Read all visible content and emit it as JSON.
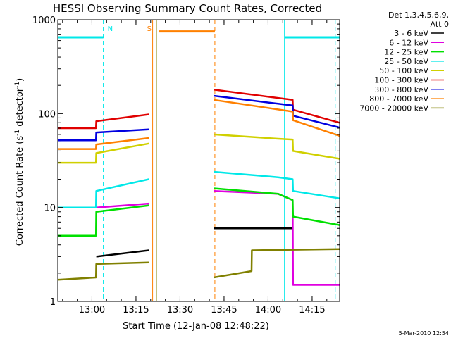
{
  "chart_data": {
    "type": "line",
    "title": "HESSI Observing Summary Count Rates, Corrected",
    "xlabel": "Start Time (12-Jan-08 12:48:22)",
    "ylabel_pre": "Corrected Count Rate (s",
    "ylabel_sup1": "-1",
    "ylabel_mid": " detector",
    "ylabel_sup2": "-1",
    "ylabel_post": ")",
    "footer": "5-Mar-2010 12:54",
    "y_scale": "log",
    "ylim": [
      1,
      1000
    ],
    "xlim_minutes": [
      0,
      96
    ],
    "x_ticks": [
      {
        "label": "13:00",
        "value": 11.63
      },
      {
        "label": "13:15",
        "value": 26.63
      },
      {
        "label": "13:30",
        "value": 41.63
      },
      {
        "label": "13:45",
        "value": 56.63
      },
      {
        "label": "14:00",
        "value": 71.63
      },
      {
        "label": "14:15",
        "value": 86.63
      }
    ],
    "y_ticks": [
      {
        "label": "1",
        "value": 1
      },
      {
        "label": "10",
        "value": 10
      },
      {
        "label": "100",
        "value": 100
      },
      {
        "label": "1000",
        "value": 1000
      }
    ],
    "legend_header": [
      "Det 1,3,4,5,6,9,",
      "Att 0"
    ],
    "legend_position": "right",
    "series": [
      {
        "name": "3 - 6 keV",
        "color": "#000000",
        "x": [
          0,
          13,
          13.1,
          31,
          53,
          53.1,
          80,
          80.1,
          96
        ],
        "y": [
          null,
          null,
          3.0,
          3.5,
          null,
          6.0,
          6.0,
          null,
          null
        ]
      },
      {
        "name": "6 - 12 keV",
        "color": "#e000e0",
        "x": [
          0,
          13,
          13.1,
          31,
          53,
          53.1,
          75,
          80,
          80.1,
          96
        ],
        "y": [
          null,
          null,
          10.0,
          11.0,
          null,
          15.0,
          14.0,
          12.0,
          1.5,
          1.5
        ]
      },
      {
        "name": "12 - 25 keV",
        "color": "#00e000",
        "x": [
          0,
          13,
          13.1,
          31,
          53,
          53.1,
          75,
          80,
          80.1,
          96
        ],
        "y": [
          5.0,
          5.0,
          9.0,
          10.5,
          null,
          16.0,
          14.0,
          12.0,
          8.0,
          6.5
        ]
      },
      {
        "name": "25 - 50 keV",
        "color": "#00e8e8",
        "x": [
          0,
          13,
          13.1,
          31,
          53,
          53.1,
          75,
          80,
          80.1,
          96
        ],
        "y": [
          10.0,
          10.0,
          15.0,
          20.0,
          null,
          24.0,
          21.0,
          20.0,
          15.0,
          12.5
        ]
      },
      {
        "name": "50 - 100 keV",
        "color": "#d0d000",
        "x": [
          0,
          13,
          13.1,
          31,
          53,
          53.1,
          75,
          80,
          80.1,
          96
        ],
        "y": [
          30.0,
          30.0,
          38.0,
          48.0,
          null,
          60.0,
          54.0,
          53.0,
          40.0,
          33.0
        ]
      },
      {
        "name": "100 - 300 keV",
        "color": "#e00000",
        "x": [
          0,
          13,
          13.1,
          31,
          53,
          53.1,
          80,
          80.1,
          96
        ],
        "y": [
          70.0,
          70.0,
          83.0,
          98.0,
          null,
          180.0,
          140.0,
          110.0,
          80.0
        ]
      },
      {
        "name": "300 - 800 keV",
        "color": "#0000e0",
        "x": [
          0,
          13,
          13.1,
          31,
          53,
          53.1,
          80,
          80.1,
          96
        ],
        "y": [
          52.0,
          52.0,
          63.0,
          68.0,
          null,
          155.0,
          122.0,
          95.0,
          71.0
        ]
      },
      {
        "name": "800 - 7000 keV",
        "color": "#ff8000",
        "x": [
          0,
          13,
          13.1,
          31,
          53,
          53.1,
          80,
          80.1,
          96
        ],
        "y": [
          42.0,
          42.0,
          47.0,
          55.0,
          null,
          140.0,
          105.0,
          85.0,
          58.0
        ]
      },
      {
        "name": "7000 - 20000 keV",
        "color": "#808000",
        "x": [
          0,
          13,
          13.1,
          31,
          53,
          53.1,
          66,
          66.1,
          96
        ],
        "y": [
          1.7,
          1.8,
          2.5,
          2.6,
          null,
          1.8,
          2.1,
          3.5,
          3.6
        ]
      }
    ],
    "annotations": [
      {
        "type": "bar",
        "color": "#00e8e8",
        "x_start": 0,
        "x_end": 15.5,
        "y": 650,
        "label": ""
      },
      {
        "type": "bar",
        "color": "#00e8e8",
        "x_start": 77.2,
        "x_end": 96,
        "y": 650,
        "label": ""
      },
      {
        "type": "bar",
        "color": "#ff8000",
        "x_start": 34.5,
        "x_end": 53.5,
        "y": 750,
        "label": ""
      },
      {
        "type": "vline",
        "color": "#00e8e8",
        "x": 15.5,
        "style": "dashed",
        "label": "N"
      },
      {
        "type": "vline",
        "color": "#00e8e8",
        "x": 77.2,
        "style": "solid",
        "label": ""
      },
      {
        "type": "vline",
        "color": "#00e8e8",
        "x": 94.5,
        "style": "dashed",
        "label": ""
      },
      {
        "type": "vline",
        "color": "#ff8000",
        "x": 32.3,
        "style": "solid",
        "label": "S"
      },
      {
        "type": "vline",
        "color": "#ff8000",
        "x": 53.5,
        "style": "dashed",
        "label": ""
      },
      {
        "type": "vline",
        "color": "#808000",
        "x": 33.6,
        "style": "solid",
        "label": ""
      }
    ]
  }
}
